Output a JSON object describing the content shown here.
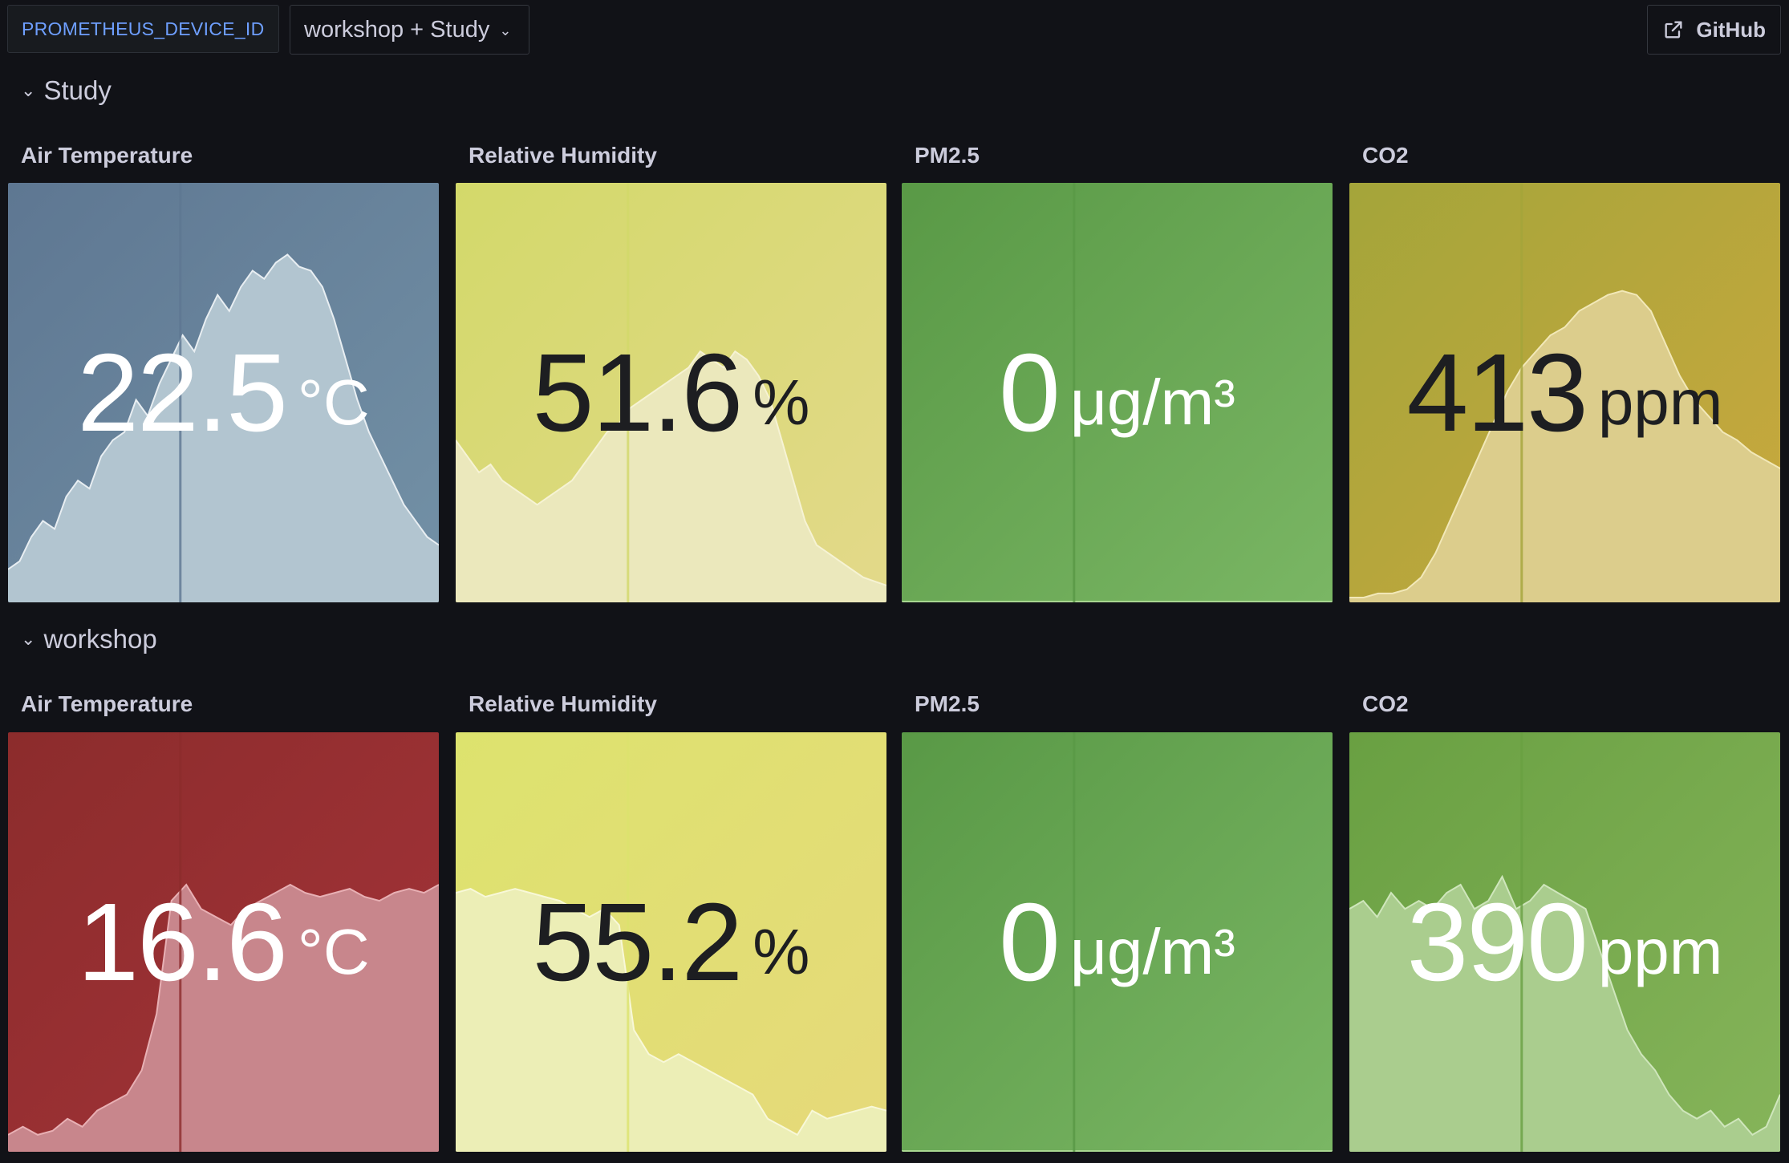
{
  "toolbar": {
    "variable_label": "PROMETHEUS_DEVICE_ID",
    "variable_value": "workshop + Study",
    "github_label": "GitHub"
  },
  "rows": [
    {
      "title": "Study",
      "panels": [
        {
          "title": "Air Temperature",
          "value": "22.5",
          "unit": "°C",
          "bg_from": "#5e7792",
          "bg_to": "#7391a6",
          "fill": "#b2c5d0",
          "line": "#e8eef2",
          "theme": "light",
          "series": [
            0.08,
            0.1,
            0.16,
            0.2,
            0.18,
            0.26,
            0.3,
            0.28,
            0.36,
            0.4,
            0.42,
            0.5,
            0.46,
            0.54,
            0.6,
            0.66,
            0.62,
            0.7,
            0.76,
            0.72,
            0.78,
            0.82,
            0.8,
            0.84,
            0.86,
            0.83,
            0.82,
            0.78,
            0.7,
            0.6,
            0.5,
            0.42,
            0.36,
            0.3,
            0.24,
            0.2,
            0.16,
            0.14
          ]
        },
        {
          "title": "Relative Humidity",
          "value": "51.6",
          "unit": "%",
          "bg_from": "#d3d96a",
          "bg_to": "#e3d98a",
          "fill": "#ebe8bc",
          "line": "#f6f3d4",
          "theme": "dark",
          "series": [
            0.4,
            0.36,
            0.32,
            0.34,
            0.3,
            0.28,
            0.26,
            0.24,
            0.26,
            0.28,
            0.3,
            0.34,
            0.38,
            0.42,
            0.44,
            0.48,
            0.5,
            0.52,
            0.54,
            0.56,
            0.58,
            0.62,
            0.6,
            0.58,
            0.62,
            0.6,
            0.56,
            0.5,
            0.4,
            0.3,
            0.2,
            0.14,
            0.12,
            0.1,
            0.08,
            0.06,
            0.05,
            0.04
          ]
        },
        {
          "title": "PM2.5",
          "value": "0",
          "unit": "μg/m³",
          "bg_from": "#599946",
          "bg_to": "#7ab664",
          "fill": "#8cc474",
          "line": "#a8d690",
          "theme": "light",
          "series": [
            0,
            0,
            0,
            0,
            0,
            0,
            0,
            0,
            0,
            0,
            0,
            0,
            0,
            0,
            0,
            0,
            0,
            0,
            0,
            0
          ]
        },
        {
          "title": "CO2",
          "value": "413",
          "unit": "ppm",
          "bg_from": "#a4a53a",
          "bg_to": "#caa83e",
          "fill": "#dccd8c",
          "line": "#f2e8b8",
          "theme": "dark",
          "series": [
            0.01,
            0.01,
            0.02,
            0.02,
            0.03,
            0.06,
            0.12,
            0.2,
            0.28,
            0.36,
            0.44,
            0.52,
            0.58,
            0.62,
            0.66,
            0.68,
            0.72,
            0.74,
            0.76,
            0.77,
            0.76,
            0.72,
            0.64,
            0.56,
            0.5,
            0.46,
            0.42,
            0.4,
            0.37,
            0.35,
            0.33
          ]
        }
      ]
    },
    {
      "title": "workshop",
      "panels": [
        {
          "title": "Air Temperature",
          "value": "16.6",
          "unit": "°C",
          "bg_from": "#8c2c2c",
          "bg_to": "#a43339",
          "fill": "#c8868c",
          "line": "#e8b0b4",
          "theme": "light",
          "series": [
            0.04,
            0.06,
            0.04,
            0.05,
            0.08,
            0.06,
            0.1,
            0.12,
            0.14,
            0.2,
            0.34,
            0.62,
            0.66,
            0.6,
            0.58,
            0.56,
            0.6,
            0.62,
            0.64,
            0.66,
            0.64,
            0.63,
            0.64,
            0.65,
            0.63,
            0.62,
            0.64,
            0.65,
            0.64,
            0.66
          ]
        },
        {
          "title": "Relative Humidity",
          "value": "55.2",
          "unit": "%",
          "bg_from": "#dde36e",
          "bg_to": "#e6d97a",
          "fill": "#eceeb6",
          "line": "#f8f8d8",
          "theme": "dark",
          "series": [
            0.64,
            0.65,
            0.63,
            0.64,
            0.65,
            0.64,
            0.63,
            0.62,
            0.6,
            0.58,
            0.6,
            0.56,
            0.3,
            0.24,
            0.22,
            0.24,
            0.22,
            0.2,
            0.18,
            0.16,
            0.14,
            0.08,
            0.06,
            0.04,
            0.1,
            0.08,
            0.09,
            0.1,
            0.11,
            0.1
          ]
        },
        {
          "title": "PM2.5",
          "value": "0",
          "unit": "μg/m³",
          "bg_from": "#599946",
          "bg_to": "#7ab664",
          "fill": "#8cc474",
          "line": "#a8d690",
          "theme": "light",
          "series": [
            0,
            0,
            0,
            0,
            0,
            0,
            0,
            0,
            0,
            0,
            0,
            0,
            0,
            0,
            0,
            0,
            0,
            0,
            0,
            0
          ]
        },
        {
          "title": "CO2",
          "value": "390",
          "unit": "ppm",
          "bg_from": "#69a042",
          "bg_to": "#86b45a",
          "fill": "#aacd8e",
          "line": "#cfe6bc",
          "theme": "light",
          "series": [
            0.6,
            0.62,
            0.58,
            0.64,
            0.6,
            0.62,
            0.6,
            0.64,
            0.66,
            0.6,
            0.62,
            0.68,
            0.6,
            0.62,
            0.66,
            0.64,
            0.62,
            0.6,
            0.5,
            0.4,
            0.3,
            0.24,
            0.2,
            0.14,
            0.1,
            0.08,
            0.1,
            0.06,
            0.08,
            0.04,
            0.06,
            0.14
          ]
        }
      ]
    }
  ]
}
